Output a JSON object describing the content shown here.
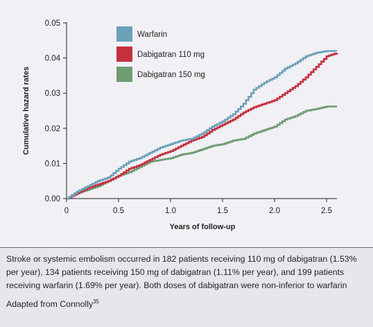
{
  "chart_data": {
    "type": "line",
    "title": "",
    "xlabel": "Years of follow-up",
    "ylabel": "Cumulative hazard rates",
    "xlim": [
      0,
      2.6
    ],
    "ylim": [
      0,
      0.05
    ],
    "x_ticks": [
      0,
      0.5,
      1.0,
      1.5,
      2.0,
      2.5
    ],
    "x_tick_labels": [
      "0",
      "0.5",
      "1.0",
      "1.5",
      "2.0",
      "2.5"
    ],
    "y_ticks": [
      0,
      0.01,
      0.02,
      0.03,
      0.04,
      0.05
    ],
    "y_tick_labels": [
      "0.00",
      "0.01",
      "0.02",
      "0.03",
      "0.04",
      "0.05"
    ],
    "grid": false,
    "legend_position": "top-left inside",
    "series": [
      {
        "name": "Warfarin",
        "color": "#6fa0b9",
        "points": [
          [
            0,
            0
          ],
          [
            0.1,
            0.002
          ],
          [
            0.2,
            0.0035
          ],
          [
            0.3,
            0.005
          ],
          [
            0.4,
            0.006
          ],
          [
            0.5,
            0.0085
          ],
          [
            0.6,
            0.0105
          ],
          [
            0.7,
            0.0115
          ],
          [
            0.8,
            0.013
          ],
          [
            0.9,
            0.0145
          ],
          [
            1.0,
            0.0155
          ],
          [
            1.1,
            0.0165
          ],
          [
            1.2,
            0.017
          ],
          [
            1.3,
            0.0185
          ],
          [
            1.4,
            0.0205
          ],
          [
            1.5,
            0.022
          ],
          [
            1.6,
            0.024
          ],
          [
            1.7,
            0.027
          ],
          [
            1.8,
            0.031
          ],
          [
            1.9,
            0.033
          ],
          [
            2.0,
            0.0345
          ],
          [
            2.1,
            0.037
          ],
          [
            2.2,
            0.0385
          ],
          [
            2.3,
            0.0405
          ],
          [
            2.4,
            0.0415
          ],
          [
            2.5,
            0.042
          ],
          [
            2.6,
            0.042
          ]
        ]
      },
      {
        "name": "Dabigatran 110 mg",
        "color": "#c4303d",
        "points": [
          [
            0,
            0
          ],
          [
            0.1,
            0.0015
          ],
          [
            0.2,
            0.003
          ],
          [
            0.3,
            0.004
          ],
          [
            0.4,
            0.005
          ],
          [
            0.5,
            0.0065
          ],
          [
            0.6,
            0.0085
          ],
          [
            0.7,
            0.0095
          ],
          [
            0.8,
            0.011
          ],
          [
            0.9,
            0.0125
          ],
          [
            1.0,
            0.0135
          ],
          [
            1.1,
            0.015
          ],
          [
            1.2,
            0.0165
          ],
          [
            1.3,
            0.0175
          ],
          [
            1.4,
            0.0195
          ],
          [
            1.5,
            0.021
          ],
          [
            1.6,
            0.0225
          ],
          [
            1.7,
            0.0245
          ],
          [
            1.8,
            0.026
          ],
          [
            1.9,
            0.027
          ],
          [
            2.0,
            0.028
          ],
          [
            2.1,
            0.03
          ],
          [
            2.2,
            0.032
          ],
          [
            2.3,
            0.0345
          ],
          [
            2.4,
            0.0375
          ],
          [
            2.5,
            0.0405
          ],
          [
            2.6,
            0.0415
          ]
        ]
      },
      {
        "name": "Dabigatran 150 mg",
        "color": "#6f9c72",
        "points": [
          [
            0,
            0
          ],
          [
            0.1,
            0.0015
          ],
          [
            0.2,
            0.0025
          ],
          [
            0.3,
            0.0035
          ],
          [
            0.4,
            0.005
          ],
          [
            0.5,
            0.0065
          ],
          [
            0.6,
            0.0075
          ],
          [
            0.7,
            0.009
          ],
          [
            0.8,
            0.0105
          ],
          [
            0.9,
            0.011
          ],
          [
            1.0,
            0.0115
          ],
          [
            1.1,
            0.0125
          ],
          [
            1.2,
            0.013
          ],
          [
            1.3,
            0.014
          ],
          [
            1.4,
            0.015
          ],
          [
            1.5,
            0.0155
          ],
          [
            1.6,
            0.0165
          ],
          [
            1.7,
            0.017
          ],
          [
            1.8,
            0.0185
          ],
          [
            1.9,
            0.0195
          ],
          [
            2.0,
            0.0205
          ],
          [
            2.1,
            0.0225
          ],
          [
            2.2,
            0.0235
          ],
          [
            2.3,
            0.025
          ],
          [
            2.4,
            0.0255
          ],
          [
            2.5,
            0.0262
          ],
          [
            2.6,
            0.0262
          ]
        ]
      }
    ]
  },
  "caption": {
    "text": "Stroke or systemic embolism occurred in 182 patients receiving 110 mg of dabigatran (1.53% per year), 134 patients receiving 150 mg of dabigatran (1.11% per year), and 199 patients receiving warfarin (1.69% per year). Both doses of dabigatran were non-inferior to warfarin",
    "source_prefix": "Adapted from Connolly",
    "source_ref": "35"
  }
}
